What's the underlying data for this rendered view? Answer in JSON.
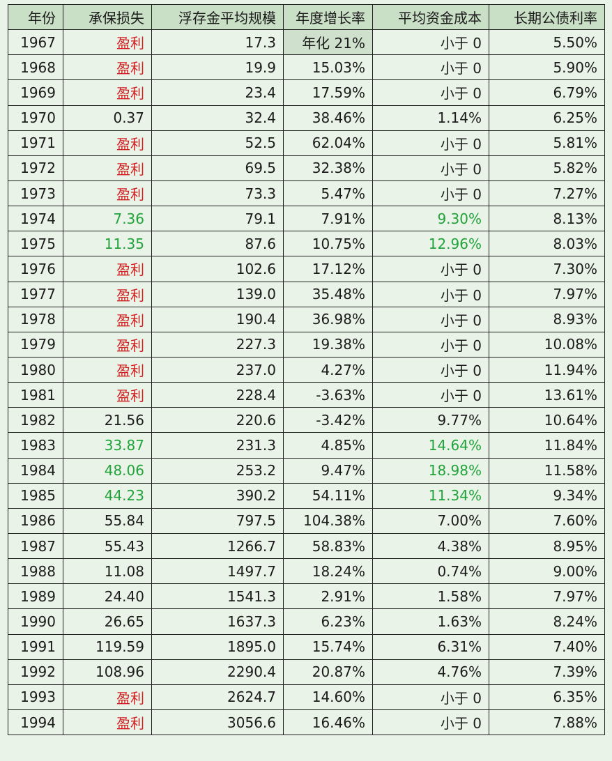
{
  "table": {
    "headers": [
      "年份",
      "承保损失",
      "浮存金平均规模",
      "年度增长率",
      "平均资金成本",
      "长期公债利率"
    ],
    "rows": [
      [
        "1967",
        "盈利",
        "17.3",
        "年化 21%",
        "小于 0",
        "5.50%"
      ],
      [
        "1968",
        "盈利",
        "19.9",
        "15.03%",
        "小于 0",
        "5.90%"
      ],
      [
        "1969",
        "盈利",
        "23.4",
        "17.59%",
        "小于 0",
        "6.79%"
      ],
      [
        "1970",
        "0.37",
        "32.4",
        "38.46%",
        "1.14%",
        "6.25%"
      ],
      [
        "1971",
        "盈利",
        "52.5",
        "62.04%",
        "小于 0",
        "5.81%"
      ],
      [
        "1972",
        "盈利",
        "69.5",
        "32.38%",
        "小于 0",
        "5.82%"
      ],
      [
        "1973",
        "盈利",
        "73.3",
        "5.47%",
        "小于 0",
        "7.27%"
      ],
      [
        "1974",
        "7.36",
        "79.1",
        "7.91%",
        "9.30%",
        "8.13%"
      ],
      [
        "1975",
        "11.35",
        "87.6",
        "10.75%",
        "12.96%",
        "8.03%"
      ],
      [
        "1976",
        "盈利",
        "102.6",
        "17.12%",
        "小于 0",
        "7.30%"
      ],
      [
        "1977",
        "盈利",
        "139.0",
        "35.48%",
        "小于 0",
        "7.97%"
      ],
      [
        "1978",
        "盈利",
        "190.4",
        "36.98%",
        "小于 0",
        "8.93%"
      ],
      [
        "1979",
        "盈利",
        "227.3",
        "19.38%",
        "小于 0",
        "10.08%"
      ],
      [
        "1980",
        "盈利",
        "237.0",
        "4.27%",
        "小于 0",
        "11.94%"
      ],
      [
        "1981",
        "盈利",
        "228.4",
        "-3.63%",
        "小于 0",
        "13.61%"
      ],
      [
        "1982",
        "21.56",
        "220.6",
        "-3.42%",
        "9.77%",
        "10.64%"
      ],
      [
        "1983",
        "33.87",
        "231.3",
        "4.85%",
        "14.64%",
        "11.84%"
      ],
      [
        "1984",
        "48.06",
        "253.2",
        "9.47%",
        "18.98%",
        "11.58%"
      ],
      [
        "1985",
        "44.23",
        "390.2",
        "54.11%",
        "11.34%",
        "9.34%"
      ],
      [
        "1986",
        "55.84",
        "797.5",
        "104.38%",
        "7.00%",
        "7.60%"
      ],
      [
        "1987",
        "55.43",
        "1266.7",
        "58.83%",
        "4.38%",
        "8.95%"
      ],
      [
        "1988",
        "11.08",
        "1497.7",
        "18.24%",
        "0.74%",
        "9.00%"
      ],
      [
        "1989",
        "24.40",
        "1541.3",
        "2.91%",
        "1.58%",
        "7.97%"
      ],
      [
        "1990",
        "26.65",
        "1637.3",
        "6.23%",
        "1.63%",
        "8.24%"
      ],
      [
        "1991",
        "119.59",
        "1895.0",
        "15.74%",
        "6.31%",
        "7.40%"
      ],
      [
        "1992",
        "108.96",
        "2290.4",
        "20.87%",
        "4.76%",
        "7.39%"
      ],
      [
        "1993",
        "盈利",
        "2624.7",
        "14.60%",
        "小于 0",
        "6.35%"
      ],
      [
        "1994",
        "盈利",
        "3056.6",
        "16.46%",
        "小于 0",
        "7.88%"
      ]
    ],
    "red_cells": [
      [
        0,
        1
      ],
      [
        1,
        1
      ],
      [
        2,
        1
      ],
      [
        4,
        1
      ],
      [
        5,
        1
      ],
      [
        6,
        1
      ],
      [
        9,
        1
      ],
      [
        10,
        1
      ],
      [
        11,
        1
      ],
      [
        12,
        1
      ],
      [
        13,
        1
      ],
      [
        14,
        1
      ],
      [
        26,
        1
      ],
      [
        27,
        1
      ]
    ],
    "green_cells": [
      [
        7,
        1
      ],
      [
        7,
        4
      ],
      [
        8,
        1
      ],
      [
        8,
        4
      ],
      [
        16,
        1
      ],
      [
        16,
        4
      ],
      [
        17,
        1
      ],
      [
        17,
        4
      ],
      [
        18,
        1
      ],
      [
        18,
        4
      ]
    ],
    "shaded_cells": [
      [
        0,
        3
      ]
    ],
    "colors": {
      "page_background": "#eaf3e7",
      "header_background": "#c9dfc6",
      "shaded_cell": "#cfe1cd",
      "red_text": "#d01f1f",
      "green_text": "#1fa33a",
      "border": "#1e1e1e"
    }
  }
}
